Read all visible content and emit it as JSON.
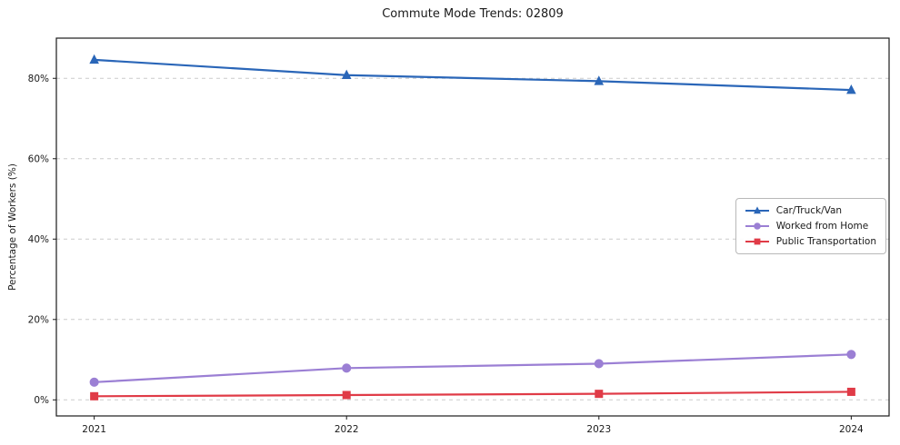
{
  "chart_data": {
    "type": "line",
    "title": "Commute Mode Trends: 02809",
    "xlabel": "",
    "ylabel": "Percentage of Workers (%)",
    "x": [
      2021,
      2022,
      2023,
      2024
    ],
    "series": [
      {
        "name": "Car/Truck/Van",
        "color": "#2a66b8",
        "marker": "triangle",
        "values": [
          84.6,
          80.8,
          79.3,
          77.1
        ]
      },
      {
        "name": "Worked from Home",
        "color": "#9b7fd4",
        "marker": "circle",
        "values": [
          4.4,
          7.9,
          9.0,
          11.3
        ]
      },
      {
        "name": "Public Transportation",
        "color": "#e03b47",
        "marker": "square",
        "values": [
          0.9,
          1.2,
          1.5,
          2.0
        ]
      }
    ],
    "yticks": [
      0,
      20,
      40,
      60,
      80
    ],
    "ytick_suffix": "%",
    "ylim": [
      -4,
      90
    ],
    "xlim": [
      2020.85,
      2024.15
    ],
    "grid": "horizontal-dashed",
    "legend_position": "center-right"
  }
}
